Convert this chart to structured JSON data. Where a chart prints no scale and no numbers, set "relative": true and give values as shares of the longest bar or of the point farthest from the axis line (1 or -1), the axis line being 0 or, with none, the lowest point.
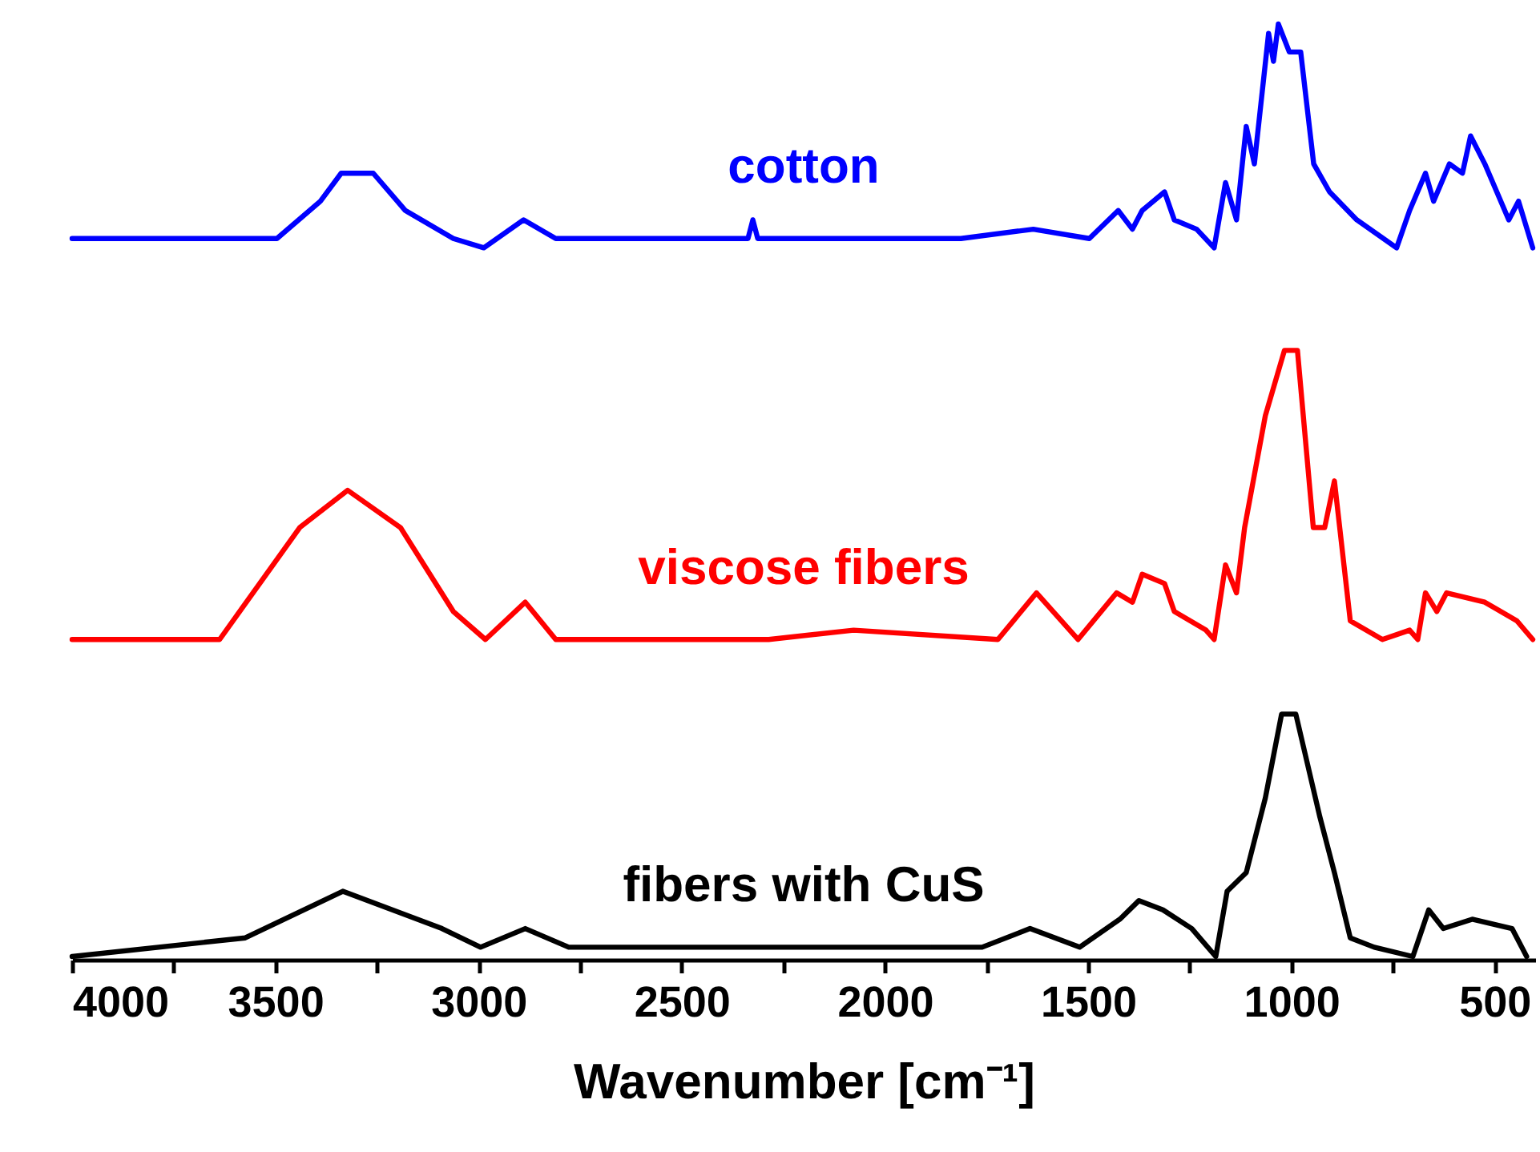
{
  "chart_data": {
    "type": "line",
    "xlabel": "Wavenumber [cm⁻¹]",
    "relative": true,
    "xlim": [
      4000,
      400
    ],
    "xticks": [
      4000,
      {
        "value": 3750,
        "label": null
      },
      3500,
      {
        "value": 3250,
        "label": null
      },
      3000,
      {
        "value": 2750,
        "label": null
      },
      2500,
      {
        "value": 2250,
        "label": null
      },
      2000,
      {
        "value": 1750,
        "label": null
      },
      1500,
      {
        "value": 1250,
        "label": null
      },
      1000,
      {
        "value": 750,
        "label": null
      },
      500
    ],
    "line_style": "solid",
    "marker": "none",
    "series": [
      {
        "name": "cotton",
        "color": "#0000ff",
        "x": [
          4000,
          3547,
          3496,
          3389,
          3338,
          3259,
          3180,
          3062,
          2987,
          2889,
          2810,
          2337,
          2325,
          2313,
          1813,
          1635,
          1497,
          1426,
          1391,
          1367,
          1312,
          1288,
          1233,
          1190,
          1162,
          1135,
          1111,
          1091,
          1056,
          1044,
          1032,
          1005,
          977,
          945,
          906,
          839,
          741,
          709,
          670,
          650,
          611,
          579,
          559,
          524,
          465,
          441,
          406
        ],
        "values": [
          0.77,
          0.77,
          0.77,
          0.81,
          0.84,
          0.84,
          0.8,
          0.77,
          0.76,
          0.79,
          0.77,
          0.77,
          0.79,
          0.77,
          0.77,
          0.78,
          0.77,
          0.8,
          0.78,
          0.8,
          0.82,
          0.79,
          0.78,
          0.76,
          0.83,
          0.79,
          0.89,
          0.85,
          0.99,
          0.96,
          1.0,
          0.97,
          0.97,
          0.85,
          0.82,
          0.79,
          0.76,
          0.8,
          0.84,
          0.81,
          0.85,
          0.84,
          0.88,
          0.85,
          0.79,
          0.81,
          0.76
        ]
      },
      {
        "name": "viscose fibers",
        "color": "#ff0000",
        "x": [
          4000,
          3637,
          3440,
          3322,
          3192,
          3062,
          2983,
          2885,
          2810,
          2286,
          2077,
          1722,
          1627,
          1525,
          1430,
          1391,
          1367,
          1312,
          1288,
          1210,
          1190,
          1162,
          1135,
          1115,
          1064,
          1017,
          985,
          946,
          918,
          894,
          855,
          776,
          709,
          689,
          670,
          642,
          618,
          524,
          445,
          406
        ],
        "values": [
          0.34,
          0.34,
          0.46,
          0.5,
          0.46,
          0.37,
          0.34,
          0.38,
          0.34,
          0.34,
          0.35,
          0.34,
          0.39,
          0.34,
          0.39,
          0.38,
          0.41,
          0.4,
          0.37,
          0.35,
          0.34,
          0.42,
          0.39,
          0.46,
          0.58,
          0.65,
          0.65,
          0.46,
          0.46,
          0.51,
          0.36,
          0.34,
          0.35,
          0.34,
          0.39,
          0.37,
          0.39,
          0.38,
          0.36,
          0.34
        ]
      },
      {
        "name": "fibers with CuS",
        "color": "#000000",
        "x": [
          4000,
          3574,
          3334,
          3090,
          2995,
          2885,
          2778,
          1761,
          1643,
          1521,
          1422,
          1375,
          1316,
          1245,
          1186,
          1158,
          1111,
          1064,
          1024,
          989,
          930,
          894,
          855,
          796,
          701,
          662,
          626,
          555,
          457,
          421
        ],
        "values": [
          0.0,
          0.02,
          0.07,
          0.03,
          0.01,
          0.03,
          0.01,
          0.01,
          0.03,
          0.01,
          0.04,
          0.06,
          0.05,
          0.03,
          0.0,
          0.07,
          0.09,
          0.17,
          0.26,
          0.26,
          0.15,
          0.09,
          0.02,
          0.01,
          0.0,
          0.05,
          0.03,
          0.04,
          0.03,
          0.0
        ]
      }
    ]
  }
}
